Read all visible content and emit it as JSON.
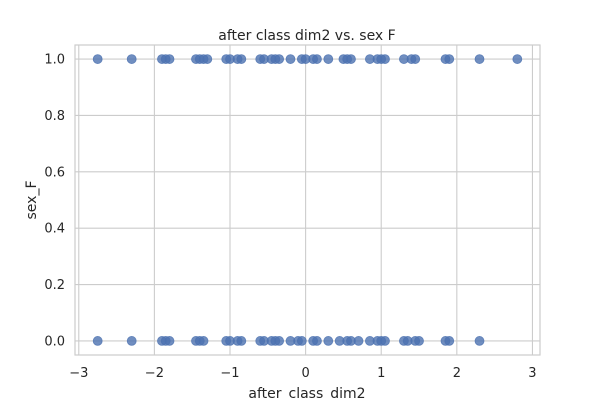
{
  "chart_data": {
    "type": "scatter",
    "title": "after class dim2 vs. sex F",
    "xlabel": "after_class_dim2",
    "ylabel": "sex_F",
    "xlim": [
      -3.05,
      3.1
    ],
    "ylim": [
      -0.05,
      1.05
    ],
    "xticks": [
      -3,
      -2,
      -1,
      0,
      1,
      2,
      3
    ],
    "xtick_labels": [
      "−3",
      "−2",
      "−1",
      "0",
      "1",
      "2",
      "3"
    ],
    "yticks": [
      0.0,
      0.2,
      0.4,
      0.6,
      0.8,
      1.0
    ],
    "ytick_labels": [
      "0.0",
      "0.2",
      "0.4",
      "0.6",
      "0.8",
      "1.0"
    ],
    "grid": true,
    "point_color": "#4c72b0",
    "series": [
      {
        "x": [
          -2.75,
          -2.3,
          -1.9,
          -1.85,
          -1.8,
          -1.45,
          -1.4,
          -1.35,
          -1.3,
          -1.05,
          -1.0,
          -0.9,
          -0.85,
          -0.6,
          -0.55,
          -0.45,
          -0.4,
          -0.35,
          -0.2,
          -0.05,
          0.0,
          0.1,
          0.15,
          0.3,
          0.5,
          0.55,
          0.6,
          0.85,
          0.95,
          1.0,
          1.05,
          1.3,
          1.4,
          1.45,
          1.85,
          1.9,
          2.3,
          2.8
        ],
        "y": [
          1,
          1,
          1,
          1,
          1,
          1,
          1,
          1,
          1,
          1,
          1,
          1,
          1,
          1,
          1,
          1,
          1,
          1,
          1,
          1,
          1,
          1,
          1,
          1,
          1,
          1,
          1,
          1,
          1,
          1,
          1,
          1,
          1,
          1,
          1,
          1,
          1,
          1
        ]
      },
      {
        "x": [
          -2.75,
          -2.3,
          -1.9,
          -1.85,
          -1.8,
          -1.45,
          -1.4,
          -1.35,
          -1.05,
          -1.0,
          -0.9,
          -0.85,
          -0.6,
          -0.55,
          -0.45,
          -0.4,
          -0.35,
          -0.2,
          -0.1,
          -0.05,
          0.1,
          0.15,
          0.3,
          0.45,
          0.55,
          0.6,
          0.7,
          0.85,
          0.95,
          1.0,
          1.05,
          1.3,
          1.35,
          1.45,
          1.5,
          1.85,
          1.9,
          2.3
        ],
        "y": [
          0,
          0,
          0,
          0,
          0,
          0,
          0,
          0,
          0,
          0,
          0,
          0,
          0,
          0,
          0,
          0,
          0,
          0,
          0,
          0,
          0,
          0,
          0,
          0,
          0,
          0,
          0,
          0,
          0,
          0,
          0,
          0,
          0,
          0,
          0,
          0,
          0,
          0
        ]
      }
    ]
  }
}
